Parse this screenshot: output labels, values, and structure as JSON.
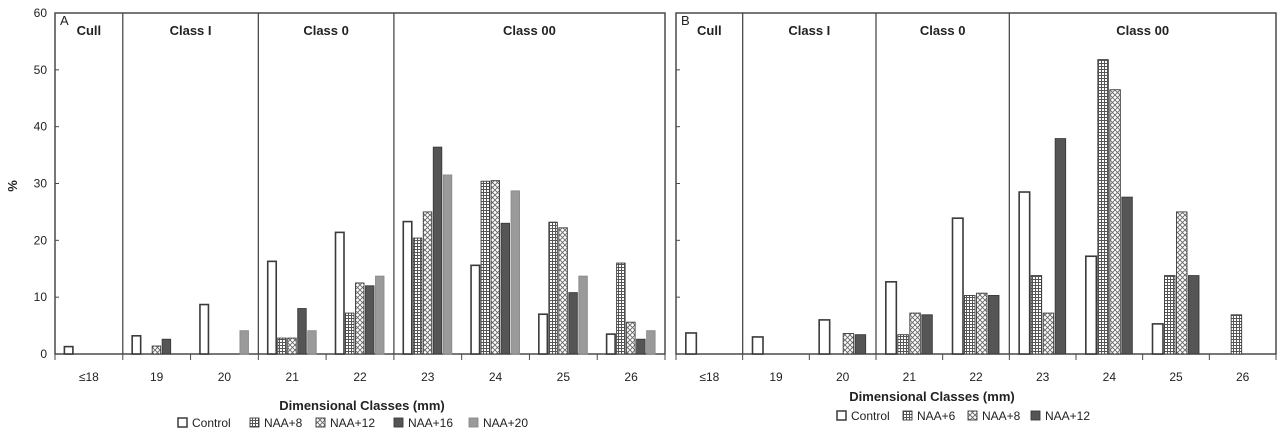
{
  "chart_data": [
    {
      "type": "bar",
      "panel_label": "A",
      "xlabel": "Dimensional Classes (mm)",
      "ylabel": "%",
      "ylim": [
        0,
        60
      ],
      "yticks": [
        0,
        10,
        20,
        30,
        40,
        50,
        60
      ],
      "grid": false,
      "legend_position": "bottom",
      "categories": [
        "≤18",
        "19",
        "20",
        "21",
        "22",
        "23",
        "24",
        "25",
        "26"
      ],
      "class_groups": [
        {
          "label": "Cull",
          "from_category": 0,
          "to_category": 0
        },
        {
          "label": "Class I",
          "from_category": 1,
          "to_category": 2
        },
        {
          "label": "Class 0",
          "from_category": 3,
          "to_category": 4
        },
        {
          "label": "Class 00",
          "from_category": 5,
          "to_category": 8
        }
      ],
      "series": [
        {
          "name": "Control",
          "pattern": "white",
          "values": [
            1.3,
            3.2,
            8.7,
            16.3,
            21.4,
            23.3,
            15.6,
            7.0,
            3.5
          ]
        },
        {
          "name": "NAA+8",
          "pattern": "grid",
          "values": [
            0,
            0,
            0,
            2.8,
            7.2,
            20.4,
            30.4,
            23.2,
            16.0
          ]
        },
        {
          "name": "NAA+12",
          "pattern": "cross",
          "values": [
            0,
            1.4,
            0,
            2.8,
            12.5,
            25.0,
            30.5,
            22.2,
            5.6
          ]
        },
        {
          "name": "NAA+16",
          "pattern": "dark",
          "values": [
            0,
            2.6,
            0,
            8.0,
            12.0,
            36.4,
            23.0,
            10.8,
            2.6
          ]
        },
        {
          "name": "NAA+20",
          "pattern": "gray",
          "values": [
            0,
            0,
            4.1,
            4.1,
            13.7,
            31.5,
            28.7,
            13.7,
            4.1
          ]
        }
      ]
    },
    {
      "type": "bar",
      "panel_label": "B",
      "xlabel": "Dimensional Classes (mm)",
      "ylabel": "",
      "ylim": [
        0,
        60
      ],
      "yticks": [
        0,
        10,
        20,
        30,
        40,
        50,
        60
      ],
      "grid": false,
      "legend_position": "bottom",
      "categories": [
        "≤18",
        "19",
        "20",
        "21",
        "22",
        "23",
        "24",
        "25",
        "26"
      ],
      "class_groups": [
        {
          "label": "Cull",
          "from_category": 0,
          "to_category": 0
        },
        {
          "label": "Class I",
          "from_category": 1,
          "to_category": 2
        },
        {
          "label": "Class 0",
          "from_category": 3,
          "to_category": 4
        },
        {
          "label": "Class 00",
          "from_category": 5,
          "to_category": 8
        }
      ],
      "series": [
        {
          "name": "Control",
          "pattern": "white",
          "values": [
            3.7,
            3.0,
            6.0,
            12.7,
            23.9,
            28.5,
            17.2,
            5.3,
            0
          ]
        },
        {
          "name": "NAA+6",
          "pattern": "grid",
          "values": [
            0,
            0,
            0,
            3.4,
            10.3,
            13.8,
            51.8,
            13.8,
            6.9
          ]
        },
        {
          "name": "NAA+8",
          "pattern": "cross",
          "values": [
            0,
            0,
            3.6,
            7.2,
            10.7,
            7.2,
            46.5,
            25.0,
            0
          ]
        },
        {
          "name": "NAA+12",
          "pattern": "dark",
          "values": [
            0,
            0,
            3.4,
            6.9,
            10.3,
            37.9,
            27.6,
            13.8,
            0
          ]
        }
      ]
    }
  ],
  "colors": {
    "bar_stroke": "#3a3a3a",
    "dark_bar": "#555555",
    "gray_bar": "#9a9a9a",
    "axis": "#4a4a4a",
    "background": "#ffffff"
  }
}
